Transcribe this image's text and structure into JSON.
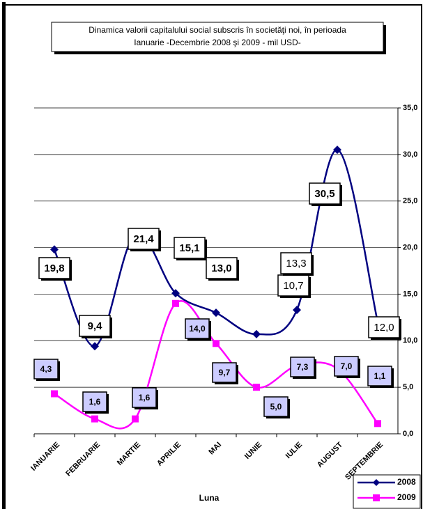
{
  "chart_data": {
    "type": "line",
    "title": [
      "Dinamica  valorii capitalului social subscris în societăţi noi,  în perioada",
      "Ianuarie -Decembrie 2008 şi 2009  - mil  USD-"
    ],
    "x_label": "Luna",
    "categories": [
      "IANUARIE",
      "FEBRUARIE",
      "MARTIE",
      "APRILIE",
      "MAI",
      "IUNIE",
      "IULIE",
      "AUGUST",
      "SEPTEMBRIE"
    ],
    "series": [
      {
        "name": "2008",
        "color": "#000080",
        "marker": "diamond",
        "values": [
          19.8,
          9.4,
          21.4,
          15.1,
          13.0,
          10.7,
          13.3,
          30.5,
          12.0
        ],
        "value_labels": [
          "19,8",
          "9,4",
          "21,4",
          "15,1",
          "13,0",
          "10,7",
          "13,3",
          "30,5",
          "12,0"
        ]
      },
      {
        "name": "2009",
        "color": "#ff00ff",
        "marker": "square",
        "values": [
          4.3,
          1.6,
          1.6,
          14.0,
          9.7,
          5.0,
          7.3,
          7.0,
          1.1
        ],
        "value_labels": [
          "4,3",
          "1,6",
          "1,6",
          "14,0",
          "9,7",
          "5,0",
          "7,3",
          "7,0",
          "1,1"
        ]
      }
    ],
    "ylim": [
      0,
      35
    ],
    "yticks": [
      {
        "value": 0,
        "label": "0,0"
      },
      {
        "value": 5,
        "label": "5,0"
      },
      {
        "value": 10,
        "label": "10,0"
      },
      {
        "value": 15,
        "label": "15,0"
      },
      {
        "value": 20,
        "label": "20,0"
      },
      {
        "value": 25,
        "label": "25,0"
      },
      {
        "value": 30,
        "label": "30,0"
      },
      {
        "value": 35,
        "label": "35,0"
      }
    ],
    "grid": true,
    "legend": "bottom-right"
  }
}
